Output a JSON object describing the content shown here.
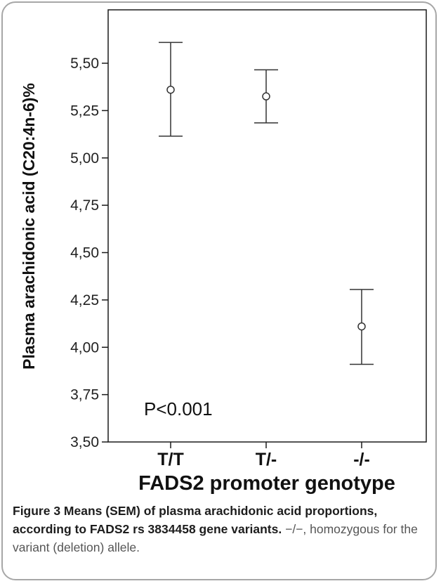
{
  "chart_data": {
    "type": "error-bar",
    "categories": [
      "T/T",
      "T/-",
      "-/-"
    ],
    "means": [
      5.36,
      5.325,
      4.11
    ],
    "lower": [
      5.115,
      5.185,
      3.91
    ],
    "upper": [
      5.61,
      5.465,
      4.305
    ],
    "ylim": [
      3.5,
      5.7
    ],
    "yticks": [
      3.5,
      3.75,
      4.0,
      4.25,
      4.5,
      4.75,
      5.0,
      5.25,
      5.5
    ],
    "ytick_labels": [
      "3,50",
      "3,75",
      "4,00",
      "4,25",
      "4,50",
      "4,75",
      "5,00",
      "5,25",
      "5,50"
    ],
    "xlabel": "FADS2 promoter genotype",
    "ylabel": "Plasma arachidonic acid (C20:4n-6)%",
    "annotation": "P<0.001",
    "grid": false
  },
  "caption": {
    "bold": "Figure 3 Means (SEM) of plasma arachidonic acid proportions, according to FADS2 rs 3834458 gene variants.",
    "rest": " −/−, homozygous for the variant (deletion) allele."
  }
}
